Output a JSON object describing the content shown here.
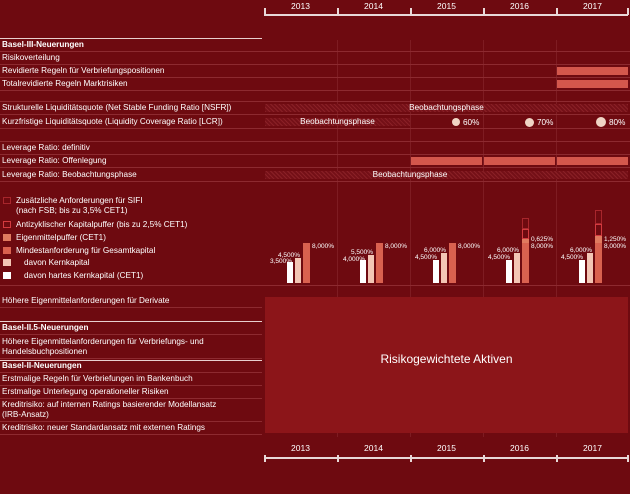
{
  "years": [
    "2013",
    "2014",
    "2015",
    "2016",
    "2017"
  ],
  "rows": {
    "basel3_header": "Basel-III-Neuerungen",
    "risikoverteilung": "Risikoverteilung",
    "verbriefung": "Revidierte Regeln für Verbriefungspositionen",
    "marktrisiken": "Totalrevidierte Regeln Marktrisiken",
    "nsfr": "Strukturelle Liquiditätsquote (Net Stable Funding Ratio [NSFR])",
    "lcr": "Kurzfristige Liquiditätsquote (Liquidity Coverage Ratio [LCR])",
    "lr_definitiv": "Leverage Ratio: definitiv",
    "lr_offenlegung": "Leverage Ratio: Offenlegung",
    "lr_beobachtung": "Leverage Ratio: Beobachtungsphase",
    "derivate": "Höhere Eigenmittelanforderungen für Derivate",
    "basel25_header": "Basel-II.5-Neuerungen",
    "basel25_text1": "Höhere Eigenmittelanforderungen für Verbriefungs- und",
    "basel25_text2": "Handelsbuchpositionen",
    "basel2_header": "Basel-II-Neuerungen",
    "bankenbuch": "Erstmalige Regeln für Verbriefungen im Bankenbuch",
    "oprisk": "Erstmalige Unterlegung operationeller Risiken",
    "irb1": "Kreditrisiko: auf internen Ratings basierender Modellansatz",
    "irb2": "(IRB-Ansatz)",
    "sa": "Kreditrisiko: neuer Standardansatz mit externen Ratings"
  },
  "phases": {
    "nsfr": "Beobachtungsphase",
    "lcr": "Beobachtungsphase",
    "leverage": "Beobachtungsphase"
  },
  "lcr_levels": [
    "60%",
    "70%",
    "80%"
  ],
  "legend": {
    "sifi1": "Zusätzliche Anforderungen für SIFI",
    "sifi2": "(nach FSB; bis zu 3,5% CET1)",
    "antizyklisch": "Antizyklischer Kapitalpuffer (bis zu 2,5% CET1)",
    "puffer": "Eigenmittelpuffer (CET1)",
    "mindest": "Mindestanforderung für Gesamtkapital",
    "kern": "davon Kernkapital",
    "cet1": "davon hartes Kernkapital (CET1)"
  },
  "capital_labels": {
    "y2013": [
      "3,500%",
      "4,500%",
      "8,000%"
    ],
    "y2014": [
      "4,000%",
      "5,500%",
      "8,000%"
    ],
    "y2015": [
      "4,500%",
      "6,000%",
      "8,000%"
    ],
    "y2016": [
      "4,500%",
      "6,000%",
      "0,625%",
      "8,000%"
    ],
    "y2017": [
      "4,500%",
      "6,000%",
      "1,250%",
      "8,000%"
    ]
  },
  "rwa_label": "Risikogewichtete Aktiven",
  "colors": {
    "background": "#6e0a10",
    "bar": "#d4574c",
    "rwa": "#8c1519",
    "dot": "#f0d5c5",
    "kern": "#f3c6b5",
    "cet1": "#ffffff"
  }
}
